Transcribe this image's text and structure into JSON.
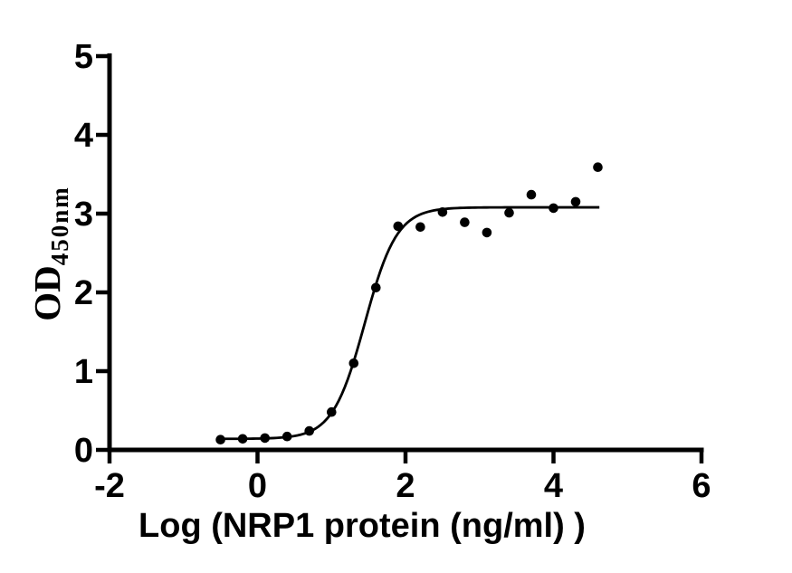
{
  "figure": {
    "background_color": "#ffffff",
    "axis_color": "#000000",
    "marker_color": "#000000",
    "curve_color": "#000000"
  },
  "chart_data": {
    "type": "scatter",
    "title": "",
    "xlabel": "Log (NRP1 protein (ng/ml) )",
    "ylabel": "OD",
    "ylabel_subscript": "450nm",
    "xlim": [
      -2,
      6
    ],
    "ylim": [
      0,
      5
    ],
    "x_ticks": [
      -2,
      0,
      2,
      4,
      6
    ],
    "y_ticks": [
      0,
      1,
      2,
      3,
      4,
      5
    ],
    "grid": false,
    "legend": false,
    "points": [
      [
        -0.5,
        0.13
      ],
      [
        -0.2,
        0.14
      ],
      [
        0.1,
        0.15
      ],
      [
        0.4,
        0.17
      ],
      [
        0.7,
        0.24
      ],
      [
        1.0,
        0.48
      ],
      [
        1.3,
        1.1
      ],
      [
        1.6,
        2.06
      ],
      [
        1.9,
        2.84
      ],
      [
        2.2,
        2.83
      ],
      [
        2.5,
        3.02
      ],
      [
        2.8,
        2.89
      ],
      [
        3.1,
        2.76
      ],
      [
        3.4,
        3.01
      ],
      [
        3.7,
        3.24
      ],
      [
        4.0,
        3.07
      ],
      [
        4.3,
        3.15
      ],
      [
        4.6,
        3.59
      ]
    ],
    "fit_curve": {
      "model": "4PL sigmoid",
      "bottom": 0.14,
      "top": 3.08,
      "logEC50": 1.45,
      "hill_slope": 2.0,
      "x_start": -0.5,
      "x_end": 4.62
    }
  }
}
